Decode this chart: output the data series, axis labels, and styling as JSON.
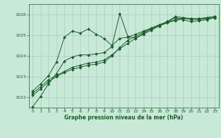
{
  "background_color": "#c8e8d8",
  "grid_color": "#a8ccbc",
  "line_color": "#1a5c28",
  "marker_color": "#1a5c28",
  "xlabel": "Graphe pression niveau de la mer (hPa)",
  "xlabel_color": "#1a5c28",
  "ylim": [
    1021.5,
    1026.5
  ],
  "xlim": [
    -0.5,
    23.5
  ],
  "yticks": [
    1022,
    1023,
    1024,
    1025,
    1026
  ],
  "xticks": [
    0,
    1,
    2,
    3,
    4,
    5,
    6,
    7,
    8,
    9,
    10,
    11,
    12,
    13,
    14,
    15,
    16,
    17,
    18,
    19,
    20,
    21,
    22,
    23
  ],
  "series": [
    [
      1021.55,
      1022.05,
      1022.65,
      1023.15,
      1023.75,
      1023.95,
      1024.05,
      1024.05,
      1024.1,
      1024.15,
      1024.45,
      1026.05,
      1024.95,
      1024.85,
      1025.1,
      1025.3,
      1025.45,
      1025.65,
      1025.85,
      1025.75,
      1025.65,
      1025.7,
      1025.75,
      1025.85
    ],
    [
      1022.1,
      1022.4,
      1022.75,
      1023.0,
      1023.2,
      1023.35,
      1023.45,
      1023.55,
      1023.6,
      1023.7,
      1024.0,
      1024.4,
      1024.75,
      1024.95,
      1025.15,
      1025.35,
      1025.5,
      1025.65,
      1025.75,
      1025.85,
      1025.8,
      1025.75,
      1025.8,
      1025.85
    ],
    [
      1022.2,
      1022.5,
      1022.85,
      1023.05,
      1023.25,
      1023.45,
      1023.55,
      1023.65,
      1023.7,
      1023.8,
      1024.05,
      1024.35,
      1024.6,
      1024.85,
      1025.05,
      1025.25,
      1025.45,
      1025.6,
      1025.7,
      1025.8,
      1025.8,
      1025.8,
      1025.85,
      1025.9
    ],
    [
      1022.3,
      1022.65,
      1023.05,
      1023.7,
      1024.9,
      1025.2,
      1025.1,
      1025.3,
      1025.05,
      1024.85,
      1024.5,
      1024.85,
      1024.9,
      1025.05,
      1025.2,
      1025.35,
      1025.5,
      1025.65,
      1025.9,
      1025.85,
      1025.75,
      1025.8,
      1025.85,
      1025.9
    ]
  ]
}
